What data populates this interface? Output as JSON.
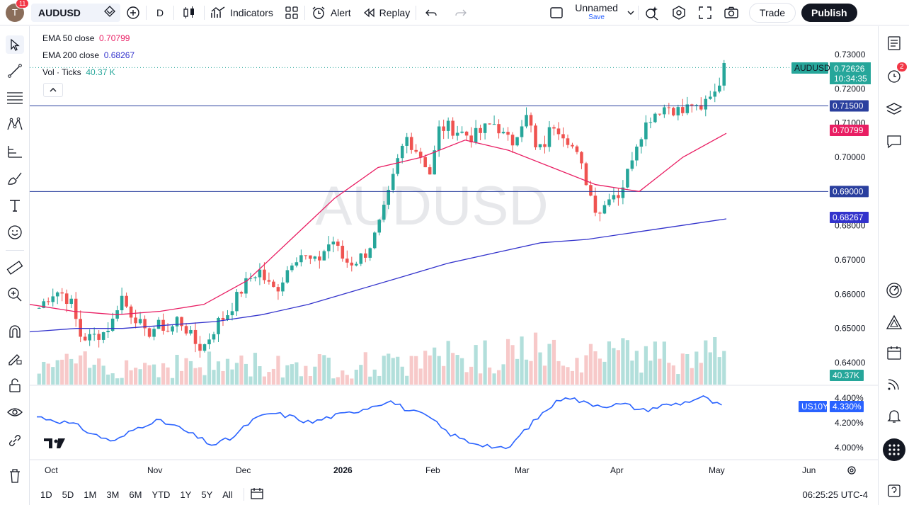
{
  "topbar": {
    "avatar_letter": "T",
    "avatar_badge": "11",
    "symbol": "AUDUSD",
    "interval": "D",
    "indicators_label": "Indicators",
    "alert_label": "Alert",
    "replay_label": "Replay",
    "layout_name": "Unnamed",
    "save_label": "Save",
    "trade_label": "Trade",
    "publish_label": "Publish"
  },
  "legend": {
    "ema50_label": "EMA 50 close",
    "ema50_value": "0.70799",
    "ema200_label": "EMA 200 close",
    "ema200_value": "0.68267",
    "vol_label": "Vol · Ticks",
    "vol_value": "40.37 K"
  },
  "watermark": "AUDUSD",
  "price_scale": [
    "0.73000",
    "0.72000",
    "0.71000",
    "0.70000",
    "0.69000",
    "0.68000",
    "0.67000",
    "0.66000",
    "0.65000",
    "0.64000"
  ],
  "price_tags": {
    "symbol_tag": "AUDUSD",
    "last_price": "0.72626",
    "countdown": "10:34:35",
    "line1": "0.71500",
    "ema50": "0.70799",
    "line2": "0.69000",
    "ema200": "0.68267",
    "volume": "40.37K"
  },
  "lower_pane": {
    "scale": [
      "4.400%",
      "4.200%",
      "4.000%"
    ],
    "symbol_tag": "US10Y",
    "value_tag": "4.330%"
  },
  "time_axis": [
    "Oct",
    "Nov",
    "Dec",
    "2026",
    "Feb",
    "Mar",
    "Apr",
    "May",
    "Jun"
  ],
  "timeframes": [
    "1D",
    "5D",
    "1M",
    "3M",
    "6M",
    "YTD",
    "1Y",
    "5Y",
    "All"
  ],
  "clock": "06:25:25 UTC-4",
  "notification_count": "2",
  "colors": {
    "up": "#26a69a",
    "down": "#ef5350",
    "ema50": "#e91e63",
    "ema200": "#3333cc",
    "us10y": "#2962ff",
    "hline": "#2a3f9e"
  },
  "chart_data": {
    "type": "candlestick",
    "symbol": "AUDUSD",
    "approx_close_path": [
      0.656,
      0.659,
      0.661,
      0.66,
      0.657,
      0.648,
      0.647,
      0.648,
      0.649,
      0.652,
      0.66,
      0.655,
      0.653,
      0.648,
      0.65,
      0.651,
      0.649,
      0.653,
      0.65,
      0.646,
      0.644,
      0.648,
      0.652,
      0.654,
      0.658,
      0.662,
      0.665,
      0.667,
      0.663,
      0.661,
      0.665,
      0.67,
      0.672,
      0.67,
      0.669,
      0.673,
      0.676,
      0.671,
      0.669,
      0.67,
      0.672,
      0.676,
      0.682,
      0.69,
      0.699,
      0.706,
      0.703,
      0.7,
      0.695,
      0.708,
      0.709,
      0.708,
      0.707,
      0.706,
      0.707,
      0.709,
      0.71,
      0.706,
      0.704,
      0.71,
      0.712,
      0.701,
      0.704,
      0.71,
      0.708,
      0.705,
      0.7,
      0.694,
      0.686,
      0.684,
      0.69,
      0.689,
      0.694,
      0.703,
      0.708,
      0.712,
      0.714,
      0.715,
      0.714,
      0.713,
      0.716,
      0.712,
      0.718,
      0.72,
      0.726
    ],
    "ema50_path": [
      0.657,
      0.655,
      0.654,
      0.655,
      0.657,
      0.664,
      0.676,
      0.688,
      0.697,
      0.7,
      0.705,
      0.702,
      0.697,
      0.692,
      0.69,
      0.7,
      0.707
    ],
    "ema200_path": [
      0.649,
      0.65,
      0.65,
      0.651,
      0.652,
      0.654,
      0.657,
      0.661,
      0.665,
      0.669,
      0.672,
      0.675,
      0.676,
      0.678,
      0.68,
      0.682
    ]
  }
}
